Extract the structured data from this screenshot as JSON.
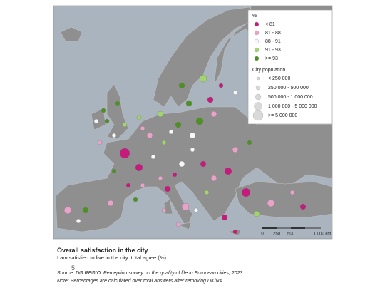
{
  "map": {
    "legend": {
      "title": "%",
      "classes": [
        {
          "label": "< 81",
          "color": "#c51b7d"
        },
        {
          "label": "81 - 88",
          "color": "#e9a3c9"
        },
        {
          "label": "88 - 91",
          "color": "#f7f7f7"
        },
        {
          "label": "91 - 93",
          "color": "#a1d76a"
        },
        {
          "label": ">= 93",
          "color": "#4d9221"
        }
      ],
      "size_title": "City population",
      "sizes": [
        "< 250 000",
        "250 000 - 500 000",
        "500 000 - 1 000 000",
        "1 000 000 - 5 000 000",
        ">= 5 000 000"
      ]
    },
    "scale_bar": [
      "0",
      "250",
      "500",
      "1 000 km"
    ]
  },
  "caption": {
    "title": "Overall satisfaction in the city",
    "subtitle": "I am satisfied to live in the city: total agree (%)",
    "page_number": "5",
    "source": "Source: DG REGIO, Perception survey on the quality of life in European cities, 2023",
    "note": "Note: Percentages are calculated over total answers after removing DK/NA"
  }
}
